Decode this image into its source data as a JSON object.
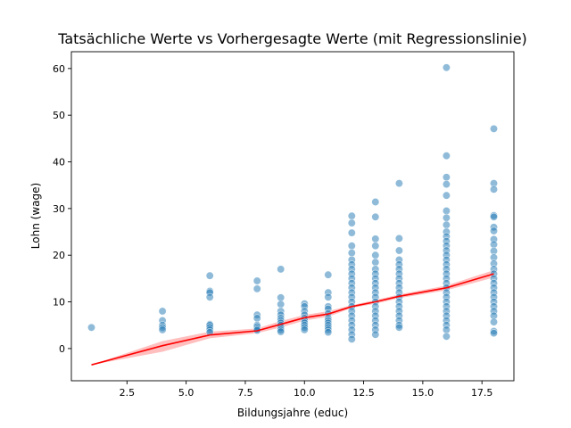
{
  "chart_data": {
    "type": "scatter",
    "title": "Tatsächliche Werte vs Vorhergesagte Werte (mit Regressionslinie)",
    "xlabel": "Bildungsjahre (educ)",
    "ylabel": "Lohn (wage)",
    "xlim": [
      0.15,
      18.85
    ],
    "ylim": [
      -6.9,
      63.6
    ],
    "xticks": [
      2.5,
      5.0,
      7.5,
      10.0,
      12.5,
      15.0,
      17.5
    ],
    "xtick_labels": [
      "2.5",
      "5.0",
      "7.5",
      "10.0",
      "12.5",
      "15.0",
      "17.5"
    ],
    "yticks": [
      0,
      10,
      20,
      30,
      40,
      50,
      60
    ],
    "ytick_labels": [
      "0",
      "10",
      "20",
      "30",
      "40",
      "50",
      "60"
    ],
    "grid": false,
    "colors": {
      "points": "#1f77b4",
      "line": "#ff0000",
      "band": "#ff0000"
    },
    "scatter_points": [
      [
        1,
        4.5
      ],
      [
        4,
        8.0
      ],
      [
        4,
        6.0
      ],
      [
        4,
        5.0
      ],
      [
        4,
        4.5
      ],
      [
        4,
        4.0
      ],
      [
        6,
        15.6
      ],
      [
        6,
        12.3
      ],
      [
        6,
        12.0
      ],
      [
        6,
        11.0
      ],
      [
        6,
        5.2
      ],
      [
        6,
        5.0
      ],
      [
        6,
        4.5
      ],
      [
        6,
        4.0
      ],
      [
        6,
        3.5
      ],
      [
        8,
        14.5
      ],
      [
        8,
        12.8
      ],
      [
        8,
        7.2
      ],
      [
        8,
        6.5
      ],
      [
        8,
        5.0
      ],
      [
        8,
        4.7
      ],
      [
        8,
        4.2
      ],
      [
        8,
        3.9
      ],
      [
        9,
        17.0
      ],
      [
        9,
        10.9
      ],
      [
        9,
        9.5
      ],
      [
        9,
        8.0
      ],
      [
        9,
        7.2
      ],
      [
        9,
        6.5
      ],
      [
        9,
        6.0
      ],
      [
        9,
        5.5
      ],
      [
        9,
        5.0
      ],
      [
        9,
        4.5
      ],
      [
        9,
        4.0
      ],
      [
        9,
        3.6
      ],
      [
        10,
        9.6
      ],
      [
        10,
        9.0
      ],
      [
        10,
        8.0
      ],
      [
        10,
        7.2
      ],
      [
        10,
        6.5
      ],
      [
        10,
        6.0
      ],
      [
        10,
        5.5
      ],
      [
        10,
        5.0
      ],
      [
        10,
        4.5
      ],
      [
        10,
        4.0
      ],
      [
        11,
        15.8
      ],
      [
        11,
        12.0
      ],
      [
        11,
        11.0
      ],
      [
        11,
        9.0
      ],
      [
        11,
        8.5
      ],
      [
        11,
        7.5
      ],
      [
        11,
        6.5
      ],
      [
        11,
        6.0
      ],
      [
        11,
        5.5
      ],
      [
        11,
        5.0
      ],
      [
        11,
        4.5
      ],
      [
        11,
        4.0
      ],
      [
        11,
        3.5
      ],
      [
        12,
        28.4
      ],
      [
        12,
        26.9
      ],
      [
        12,
        24.8
      ],
      [
        12,
        22.0
      ],
      [
        12,
        20.5
      ],
      [
        12,
        19.0
      ],
      [
        12,
        18.0
      ],
      [
        12,
        17.0
      ],
      [
        12,
        16.0
      ],
      [
        12,
        15.0
      ],
      [
        12,
        14.0
      ],
      [
        12,
        13.0
      ],
      [
        12,
        12.0
      ],
      [
        12,
        11.0
      ],
      [
        12,
        10.0
      ],
      [
        12,
        9.0
      ],
      [
        12,
        8.0
      ],
      [
        12,
        7.0
      ],
      [
        12,
        6.0
      ],
      [
        12,
        5.0
      ],
      [
        12,
        4.0
      ],
      [
        12,
        3.0
      ],
      [
        12,
        2.0
      ],
      [
        13,
        31.4
      ],
      [
        13,
        28.2
      ],
      [
        13,
        23.5
      ],
      [
        13,
        22.0
      ],
      [
        13,
        20.0
      ],
      [
        13,
        18.5
      ],
      [
        13,
        17.0
      ],
      [
        13,
        16.0
      ],
      [
        13,
        15.0
      ],
      [
        13,
        14.0
      ],
      [
        13,
        13.0
      ],
      [
        13,
        12.0
      ],
      [
        13,
        11.0
      ],
      [
        13,
        10.0
      ],
      [
        13,
        9.0
      ],
      [
        13,
        8.0
      ],
      [
        13,
        7.0
      ],
      [
        13,
        6.0
      ],
      [
        13,
        5.0
      ],
      [
        13,
        4.0
      ],
      [
        13,
        3.0
      ],
      [
        14,
        35.4
      ],
      [
        14,
        23.6
      ],
      [
        14,
        21.0
      ],
      [
        14,
        19.0
      ],
      [
        14,
        18.0
      ],
      [
        14,
        17.0
      ],
      [
        14,
        16.0
      ],
      [
        14,
        15.0
      ],
      [
        14,
        14.0
      ],
      [
        14,
        13.0
      ],
      [
        14,
        12.0
      ],
      [
        14,
        11.0
      ],
      [
        14,
        10.0
      ],
      [
        14,
        9.0
      ],
      [
        14,
        8.0
      ],
      [
        14,
        7.0
      ],
      [
        14,
        6.0
      ],
      [
        14,
        5.0
      ],
      [
        14,
        4.5
      ],
      [
        16,
        60.2
      ],
      [
        16,
        41.3
      ],
      [
        16,
        36.7
      ],
      [
        16,
        35.2
      ],
      [
        16,
        32.8
      ],
      [
        16,
        29.5
      ],
      [
        16,
        28.0
      ],
      [
        16,
        26.5
      ],
      [
        16,
        25.0
      ],
      [
        16,
        24.0
      ],
      [
        16,
        23.0
      ],
      [
        16,
        22.0
      ],
      [
        16,
        21.0
      ],
      [
        16,
        20.0
      ],
      [
        16,
        19.0
      ],
      [
        16,
        18.0
      ],
      [
        16,
        17.0
      ],
      [
        16,
        16.0
      ],
      [
        16,
        15.0
      ],
      [
        16,
        14.0
      ],
      [
        16,
        13.0
      ],
      [
        16,
        12.0
      ],
      [
        16,
        11.0
      ],
      [
        16,
        10.0
      ],
      [
        16,
        9.0
      ],
      [
        16,
        8.0
      ],
      [
        16,
        7.0
      ],
      [
        16,
        6.0
      ],
      [
        16,
        5.0
      ],
      [
        16,
        4.0
      ],
      [
        16,
        2.6
      ],
      [
        18,
        47.1
      ],
      [
        18,
        35.4
      ],
      [
        18,
        34.1
      ],
      [
        18,
        28.5
      ],
      [
        18,
        28.2
      ],
      [
        18,
        26.0
      ],
      [
        18,
        25.2
      ],
      [
        18,
        23.4
      ],
      [
        18,
        22.3
      ],
      [
        18,
        20.9
      ],
      [
        18,
        19.5
      ],
      [
        18,
        18.2
      ],
      [
        18,
        17.0
      ],
      [
        18,
        16.0
      ],
      [
        18,
        15.0
      ],
      [
        18,
        14.0
      ],
      [
        18,
        13.0
      ],
      [
        18,
        12.0
      ],
      [
        18,
        11.0
      ],
      [
        18,
        10.0
      ],
      [
        18,
        9.0
      ],
      [
        18,
        8.0
      ],
      [
        18,
        7.0
      ],
      [
        18,
        5.7
      ],
      [
        18,
        3.7
      ],
      [
        18,
        3.3
      ]
    ],
    "regression_line": [
      [
        1,
        -3.5
      ],
      [
        4,
        0.6
      ],
      [
        6,
        2.9
      ],
      [
        8,
        3.8
      ],
      [
        9,
        5.2
      ],
      [
        10,
        6.6
      ],
      [
        11,
        7.4
      ],
      [
        12,
        9.0
      ],
      [
        13,
        10.0
      ],
      [
        14,
        11.2
      ],
      [
        16,
        13.0
      ],
      [
        18,
        16.0
      ]
    ],
    "confidence_band": [
      [
        1,
        -3.5,
        -3.5
      ],
      [
        4,
        -0.7,
        1.6
      ],
      [
        6,
        2.2,
        3.6
      ],
      [
        8,
        3.3,
        4.3
      ],
      [
        9,
        4.5,
        5.9
      ],
      [
        10,
        6.0,
        7.2
      ],
      [
        11,
        6.8,
        8.0
      ],
      [
        12,
        8.7,
        9.3
      ],
      [
        13,
        9.6,
        10.4
      ],
      [
        14,
        10.8,
        11.6
      ],
      [
        16,
        12.5,
        13.5
      ],
      [
        18,
        15.2,
        16.8
      ]
    ]
  }
}
